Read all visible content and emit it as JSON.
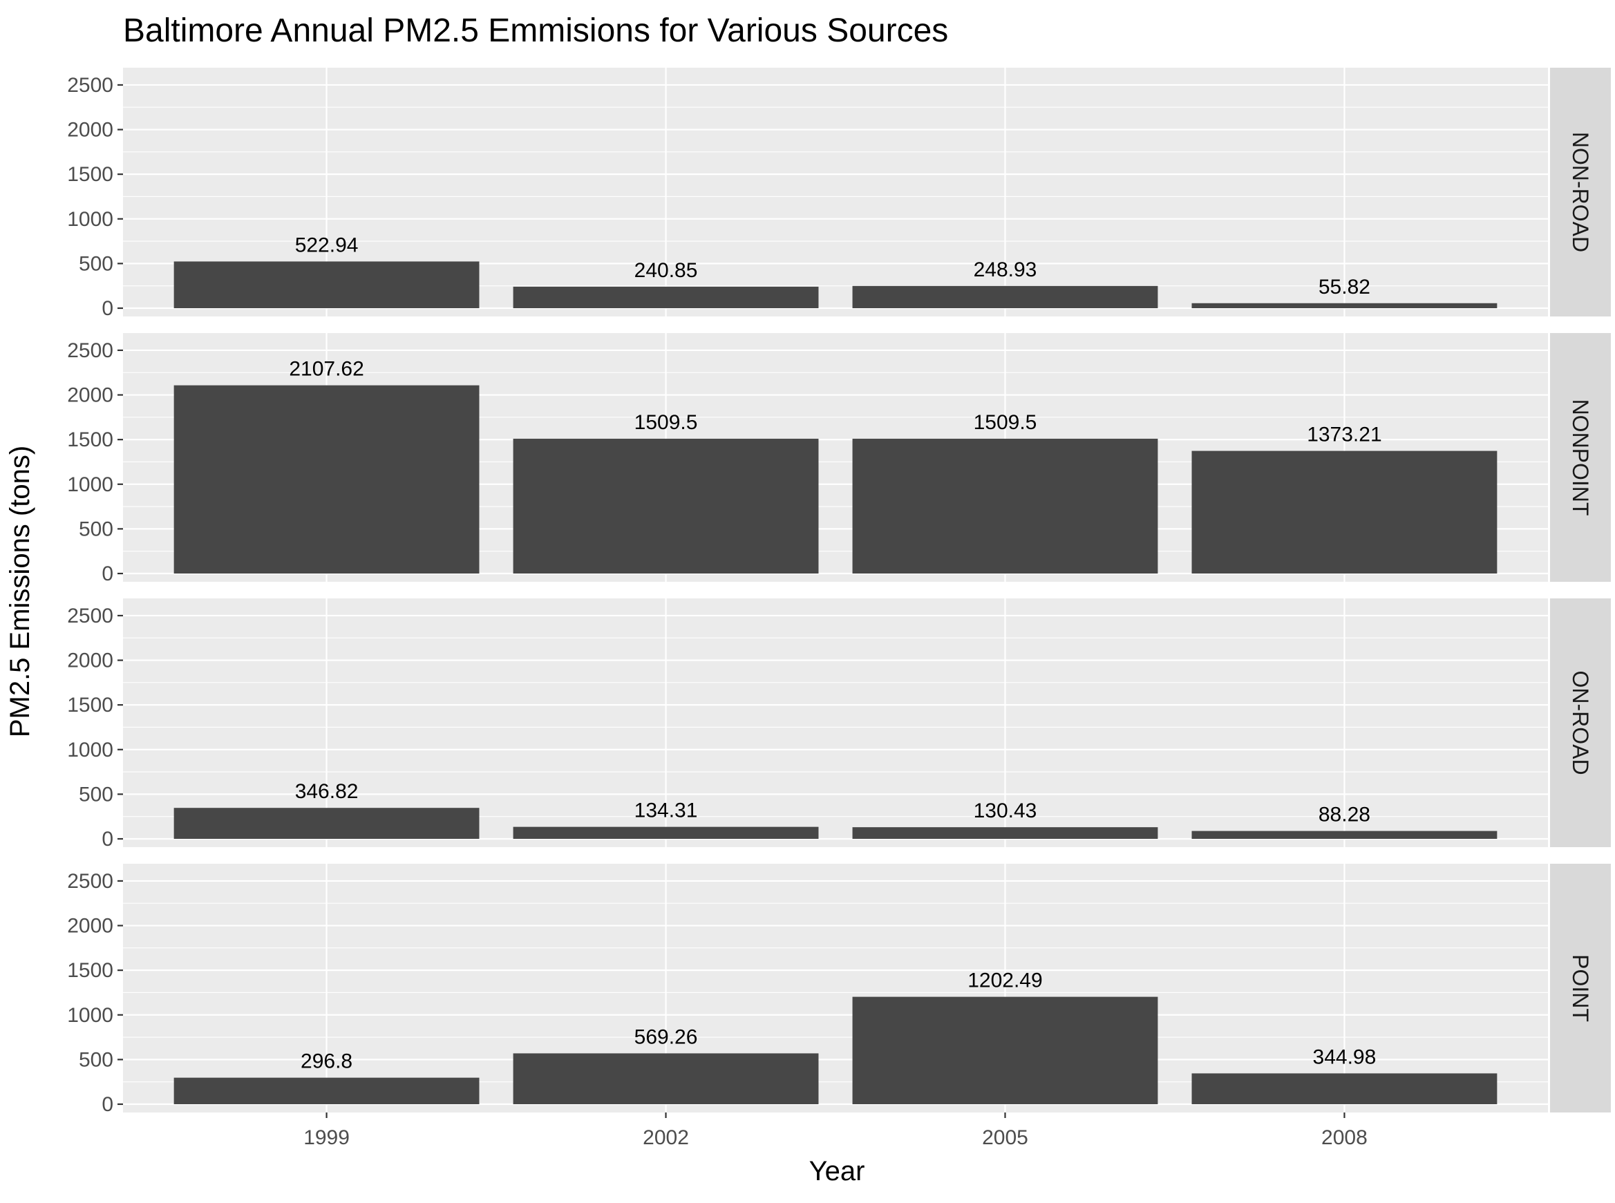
{
  "chart_data": {
    "type": "bar",
    "title": "Baltimore Annual PM2.5 Emmisions for Various Sources",
    "xlabel": "Year",
    "ylabel": "PM2.5 Emissions (tons)",
    "categories": [
      "1999",
      "2002",
      "2005",
      "2008"
    ],
    "ylim": [
      0,
      2600
    ],
    "yticks": [
      0,
      500,
      1000,
      1500,
      2000,
      2500
    ],
    "grid": true,
    "facet": "rows",
    "series": [
      {
        "name": "NON-ROAD",
        "values": [
          522.94,
          240.85,
          248.93,
          55.82
        ],
        "labels": [
          "522.94",
          "240.85",
          "248.93",
          "55.82"
        ]
      },
      {
        "name": "NONPOINT",
        "values": [
          2107.62,
          1509.5,
          1509.5,
          1373.21
        ],
        "labels": [
          "2107.62",
          "1509.5",
          "1509.5",
          "1373.21"
        ]
      },
      {
        "name": "ON-ROAD",
        "values": [
          346.82,
          134.31,
          130.43,
          88.28
        ],
        "labels": [
          "346.82",
          "134.31",
          "130.43",
          "88.28"
        ]
      },
      {
        "name": "POINT",
        "values": [
          296.8,
          569.26,
          1202.49,
          344.98
        ],
        "labels": [
          "296.8",
          "569.26",
          "1202.49",
          "344.98"
        ]
      }
    ],
    "colors": {
      "bar": "#474747",
      "panel": "#ebebeb",
      "strip": "#d9d9d9",
      "grid": "#ffffff"
    }
  }
}
